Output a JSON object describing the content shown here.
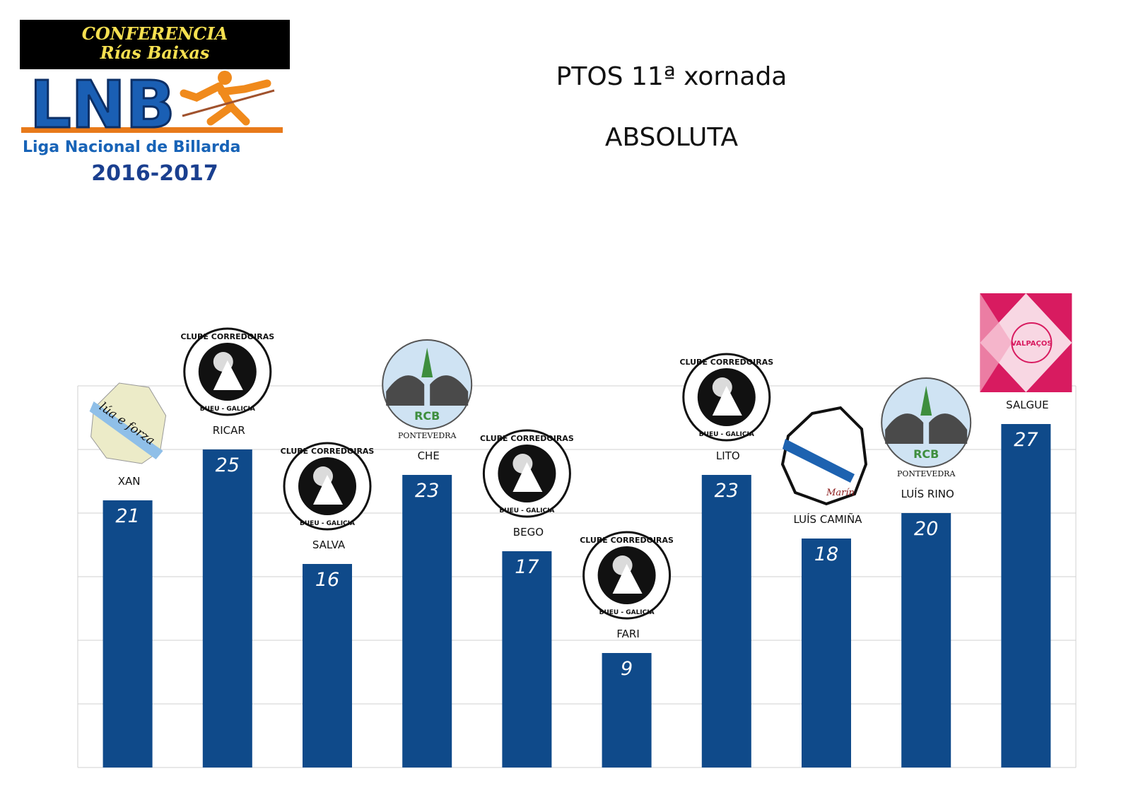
{
  "logo": {
    "banner_line1": "CONFERENCIA",
    "banner_line2": "Rías Baixas",
    "mark": "LNB",
    "league_name": "Liga Nacional de Billarda",
    "season": "2016-2017"
  },
  "header": {
    "title": "PTOS 11ª xornada",
    "subtitle": "ABSOLUTA"
  },
  "colors": {
    "bar": "#0f4a8a",
    "grid": "#d0d0d0",
    "value_label": "#ffffff"
  },
  "chart_data": {
    "type": "bar",
    "title": "PTOS 11ª xornada",
    "subtitle": "ABSOLUTA",
    "categories": [
      "XAN",
      "RICAR",
      "SALVA",
      "CHE",
      "BEGO",
      "FARI",
      "LITO",
      "LUÍS CAMIÑA",
      "LUÍS RINO",
      "SALGUE"
    ],
    "values": [
      21,
      25,
      16,
      23,
      17,
      9,
      23,
      18,
      20,
      27
    ],
    "ylim": [
      0,
      30
    ],
    "grid": true,
    "legend": "none",
    "data_labels": "inside-top",
    "club_badges": [
      {
        "player": "XAN",
        "badge": "lua-e-forza-map-badge",
        "text": "lúa e forza"
      },
      {
        "player": "RICAR",
        "badge": "clube-corredoiras-badge",
        "text": "CLUBE CORREDOIRAS",
        "caption": "BUEU - GALICIA"
      },
      {
        "player": "SALVA",
        "badge": "clube-corredoiras-badge",
        "text": "CLUBE CORREDOIRAS",
        "caption": "BUEU - GALICIA"
      },
      {
        "player": "CHE",
        "badge": "rhino-rcb-badge",
        "text": "RCB",
        "caption": "PONTEVEDRA"
      },
      {
        "player": "BEGO",
        "badge": "clube-corredoiras-badge",
        "text": "CLUBE CORREDOIRAS",
        "caption": "BUEU - GALICIA"
      },
      {
        "player": "FARI",
        "badge": "clube-corredoiras-badge",
        "text": "CLUBE CORREDOIRAS",
        "caption": "BUEU - GALICIA"
      },
      {
        "player": "LITO",
        "badge": "clube-corredoiras-badge",
        "text": "CLUBE CORREDOIRAS",
        "caption": "BUEU - GALICIA"
      },
      {
        "player": "LUÍS CAMIÑA",
        "badge": "galicia-map-marin-badge",
        "text": "Marín"
      },
      {
        "player": "LUÍS RINO",
        "badge": "rhino-rcb-badge",
        "text": "RCB",
        "caption": "PONTEVEDRA"
      },
      {
        "player": "SALGUE",
        "badge": "valpacos-pink-badge",
        "text": "VALPAÇOS"
      }
    ]
  }
}
